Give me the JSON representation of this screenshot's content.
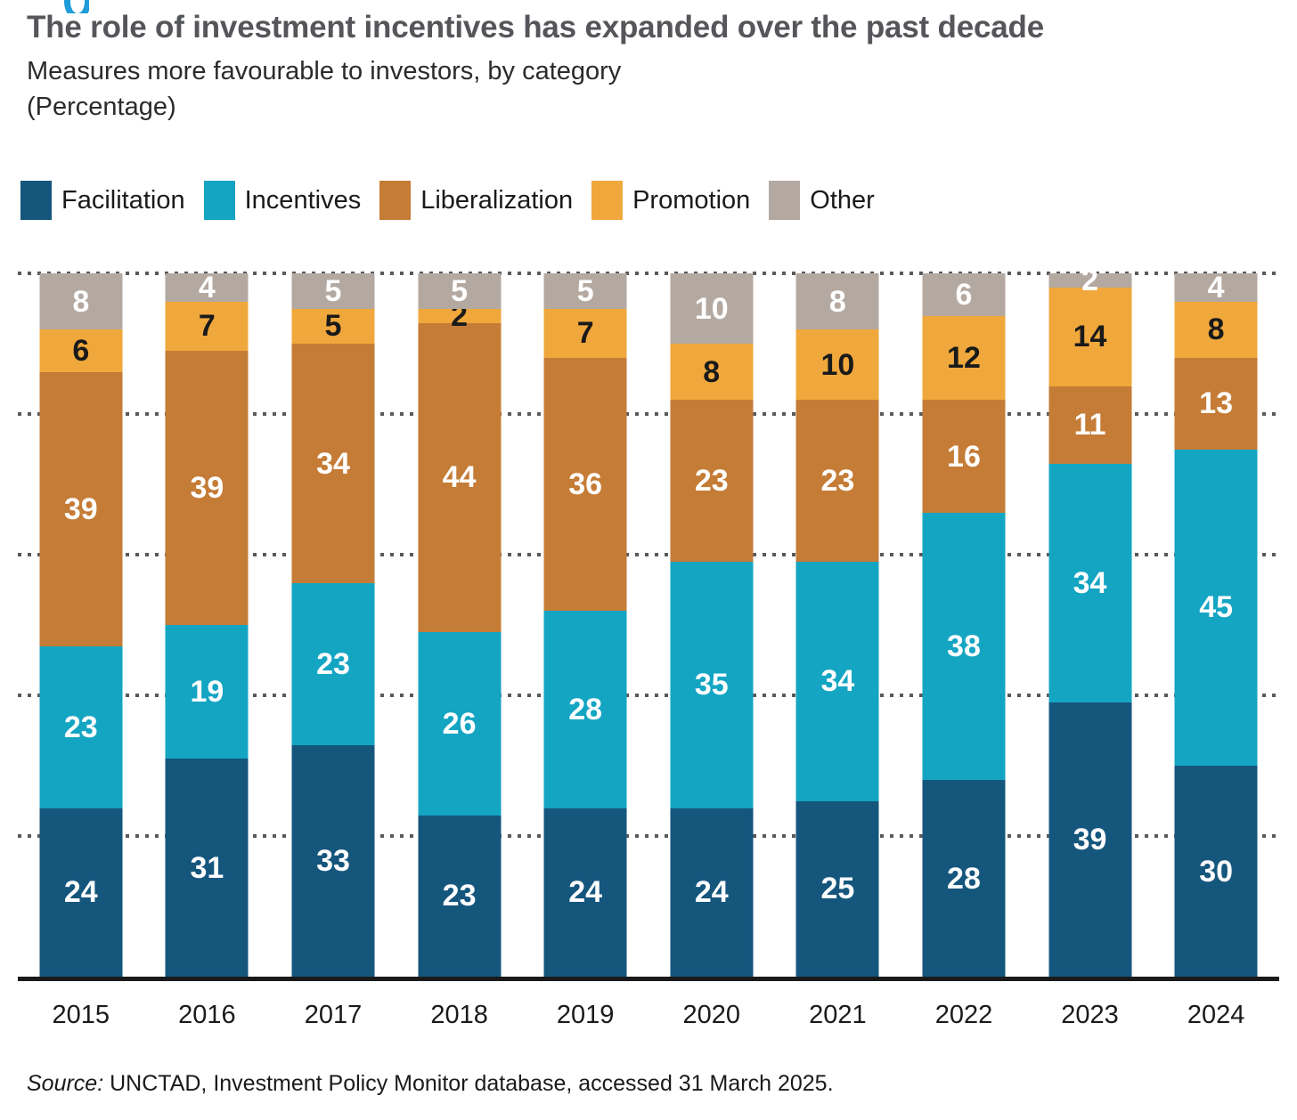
{
  "figure": {
    "partial_label_color": "#1f9cd9"
  },
  "header": {
    "title": "The role of investment incentives has expanded over the past decade",
    "subtitle": "Measures more favourable to investors, by category",
    "unit_line": "(Percentage)"
  },
  "chart_data": {
    "type": "bar",
    "subtype": "stacked-percentage",
    "title": "The role of investment incentives has expanded over the past decade",
    "subtitle": "Measures more favourable to investors, by category (Percentage)",
    "categories": [
      "2015",
      "2016",
      "2017",
      "2018",
      "2019",
      "2020",
      "2021",
      "2022",
      "2023",
      "2024"
    ],
    "series": [
      {
        "name": "Facilitation",
        "color": "#15567d",
        "label_color": "#ffffff",
        "values": [
          24,
          31,
          33,
          23,
          24,
          24,
          25,
          28,
          39,
          30
        ]
      },
      {
        "name": "Incentives",
        "color": "#14a5c3",
        "label_color": "#ffffff",
        "values": [
          23,
          19,
          23,
          26,
          28,
          35,
          34,
          38,
          34,
          45
        ]
      },
      {
        "name": "Liberalization",
        "color": "#c57c36",
        "label_color": "#ffffff",
        "values": [
          39,
          39,
          34,
          44,
          36,
          23,
          23,
          16,
          11,
          13
        ]
      },
      {
        "name": "Promotion",
        "color": "#f0a83c",
        "label_color": "#1a1a1a",
        "values": [
          6,
          7,
          5,
          2,
          7,
          8,
          10,
          12,
          14,
          8
        ]
      },
      {
        "name": "Other",
        "color": "#b4a9a1",
        "label_color": "#ffffff",
        "values": [
          8,
          4,
          5,
          5,
          5,
          10,
          8,
          6,
          2,
          4
        ]
      }
    ],
    "ylim": [
      0,
      100
    ],
    "gridlines": [
      20,
      40,
      60,
      80,
      100
    ],
    "grid_style": "dotted-horizontal",
    "grid_color": "#59595b",
    "axis_color": "#1a1a1a",
    "legend_position": "top"
  },
  "footer": {
    "source_prefix": "Source:",
    "source_text": " UNCTAD, Investment Policy Monitor database, accessed 31 March 2025."
  }
}
